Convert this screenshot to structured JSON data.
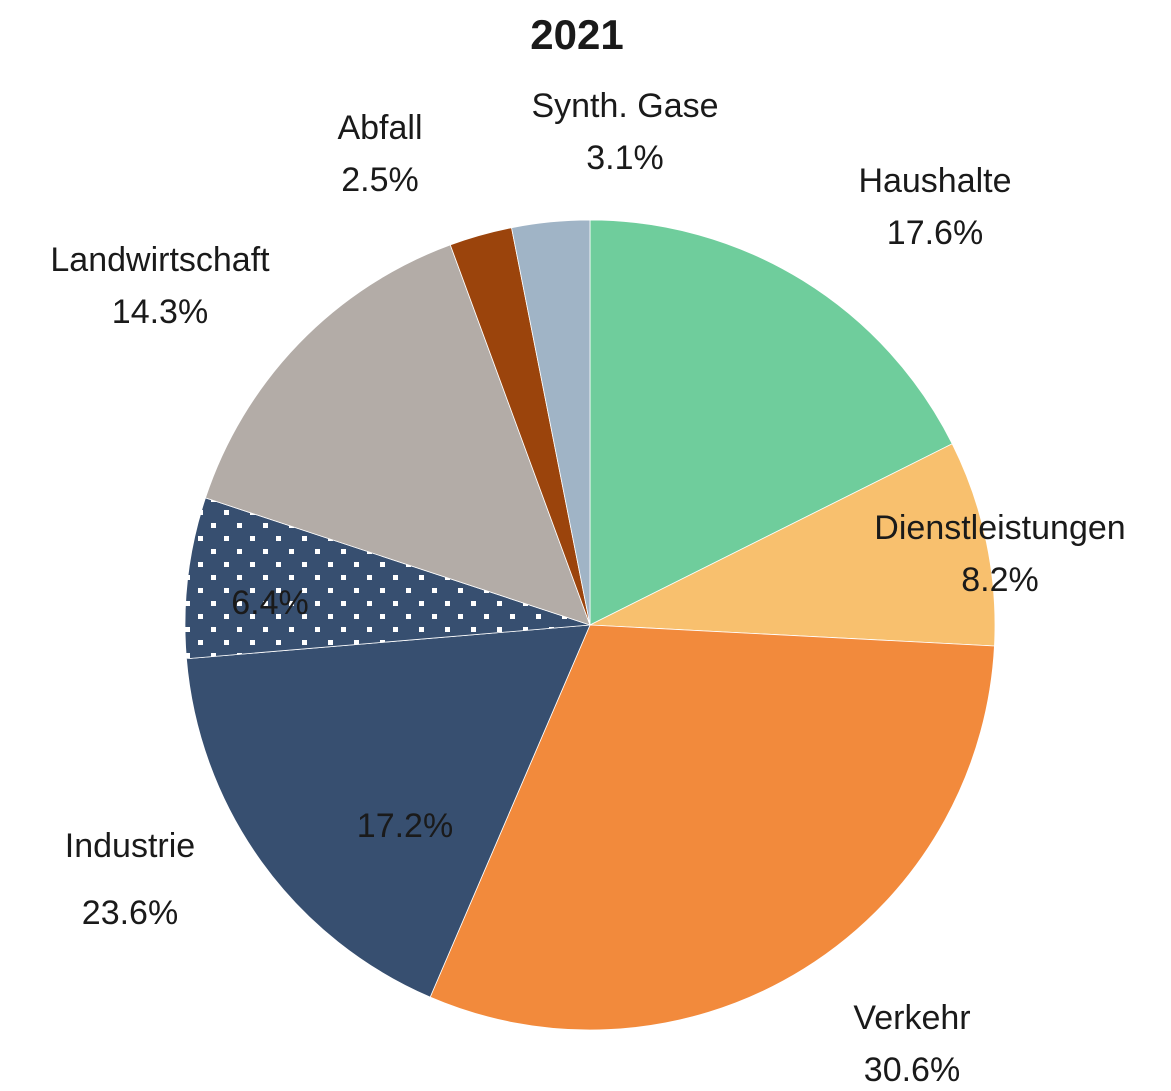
{
  "chart_data": {
    "type": "pie",
    "title": "2021",
    "categories": [
      "Haushalte",
      "Dienstleistungen",
      "Verkehr",
      null,
      null,
      "Landwirtschaft",
      "Abfall",
      "Synth. Gase"
    ],
    "values": [
      17.6,
      8.2,
      30.6,
      17.2,
      6.4,
      14.3,
      2.5,
      3.1
    ],
    "value_labels": [
      "17.6%",
      "8.2%",
      "30.6%",
      "17.2%",
      "6.4%",
      "14.3%",
      "2.5%",
      "3.1%"
    ],
    "colors": [
      "#6fcd9c",
      "#f8c06e",
      "#f28a3c",
      "#374f70",
      "#374f70",
      "#b3aca7",
      "#9b440c",
      "#a0b4c6"
    ],
    "dotted_slices": [
      4
    ],
    "annotations": [
      {
        "text": "Industrie",
        "value": 23.6,
        "value_label": "23.6%"
      }
    ]
  }
}
